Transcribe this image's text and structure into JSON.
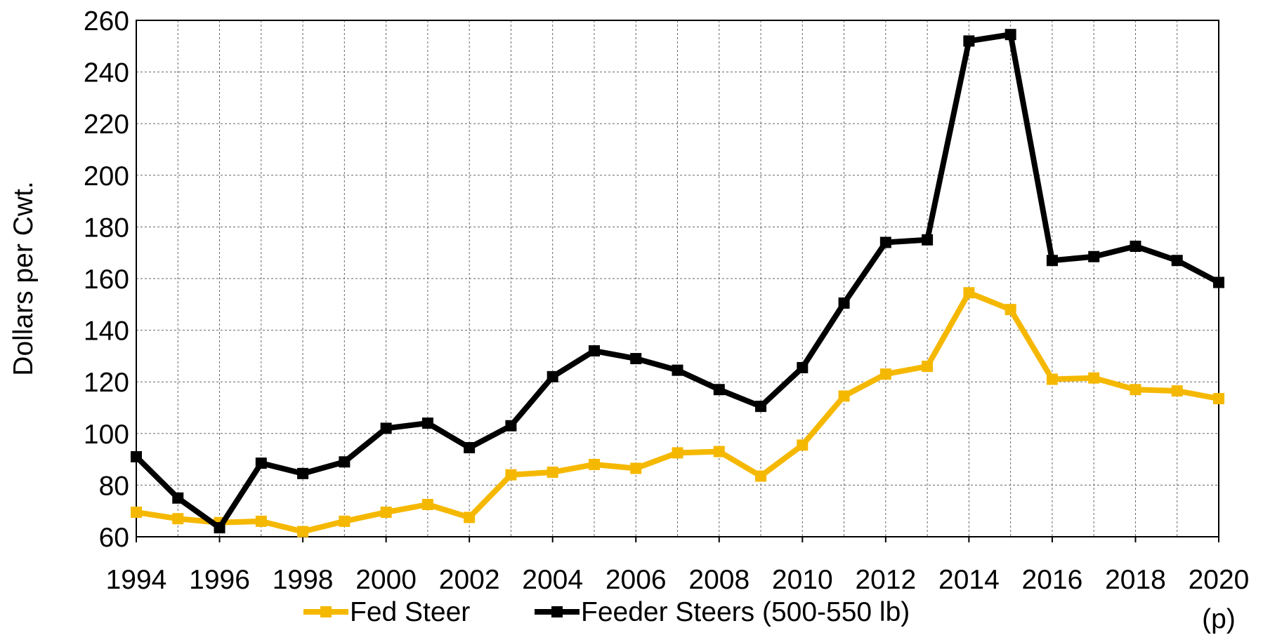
{
  "chart_data": {
    "type": "line",
    "ylabel": "Dollars per Cwt.",
    "x": [
      1994,
      1995,
      1996,
      1997,
      1998,
      1999,
      2000,
      2001,
      2002,
      2003,
      2004,
      2005,
      2006,
      2007,
      2008,
      2009,
      2010,
      2011,
      2012,
      2013,
      2014,
      2015,
      2016,
      2017,
      2018,
      2019,
      2020
    ],
    "series": [
      {
        "name": "Fed Steer",
        "color": "#f5b800",
        "values": [
          69.5,
          67,
          65.5,
          66,
          62,
          66,
          69.5,
          72.5,
          67.5,
          84,
          85,
          88,
          86.5,
          92.5,
          93,
          83.5,
          95.5,
          114.5,
          123,
          126,
          154.5,
          148,
          121,
          121.5,
          117,
          116.5,
          113.5
        ]
      },
      {
        "name": "Feeder Steers (500-550 lb)",
        "color": "#000000",
        "values": [
          91,
          75,
          63.5,
          88.5,
          84.5,
          89,
          102,
          104,
          94.5,
          103,
          122,
          132,
          129,
          124.5,
          117,
          110.5,
          125.5,
          150.5,
          174,
          175,
          252,
          254.5,
          167,
          168.5,
          172.5,
          167,
          158.5
        ]
      }
    ],
    "xlim": [
      1994,
      2020
    ],
    "xticks": [
      1994,
      1996,
      1998,
      2000,
      2002,
      2004,
      2006,
      2008,
      2010,
      2012,
      2014,
      2016,
      2018,
      {
        "value": 2020,
        "label": "2020 (p)"
      }
    ],
    "ylim": [
      60,
      260
    ],
    "yticks": [
      60,
      80,
      100,
      120,
      140,
      160,
      180,
      200,
      220,
      240,
      260
    ],
    "grid": true,
    "legend": "bottom"
  }
}
